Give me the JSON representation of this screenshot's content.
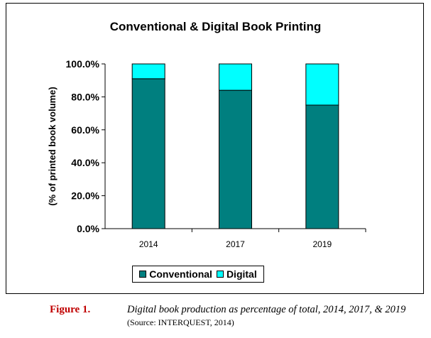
{
  "chart_data": {
    "type": "bar",
    "stacked": true,
    "title": "Conventional & Digital Book Printing",
    "xlabel": "",
    "ylabel": "(% of printed book volume)",
    "categories": [
      "2014",
      "2017",
      "2019"
    ],
    "series": [
      {
        "name": "Conventional",
        "color": "#007f7f",
        "values": [
          91,
          84,
          75
        ]
      },
      {
        "name": "Digital",
        "color": "#00ffff",
        "values": [
          9,
          16,
          25
        ]
      }
    ],
    "ylim": [
      0,
      100
    ],
    "yticks": [
      "0.0%",
      "20.0%",
      "40.0%",
      "60.0%",
      "80.0%",
      "100.0%"
    ],
    "grid": false,
    "legend_position": "bottom"
  },
  "caption": {
    "figure_number": "Figure 1.",
    "text": "Digital book production as percentage of  total, 2014, 2017, & 2019",
    "source": "(Source: INTERQUEST, 2014)"
  }
}
